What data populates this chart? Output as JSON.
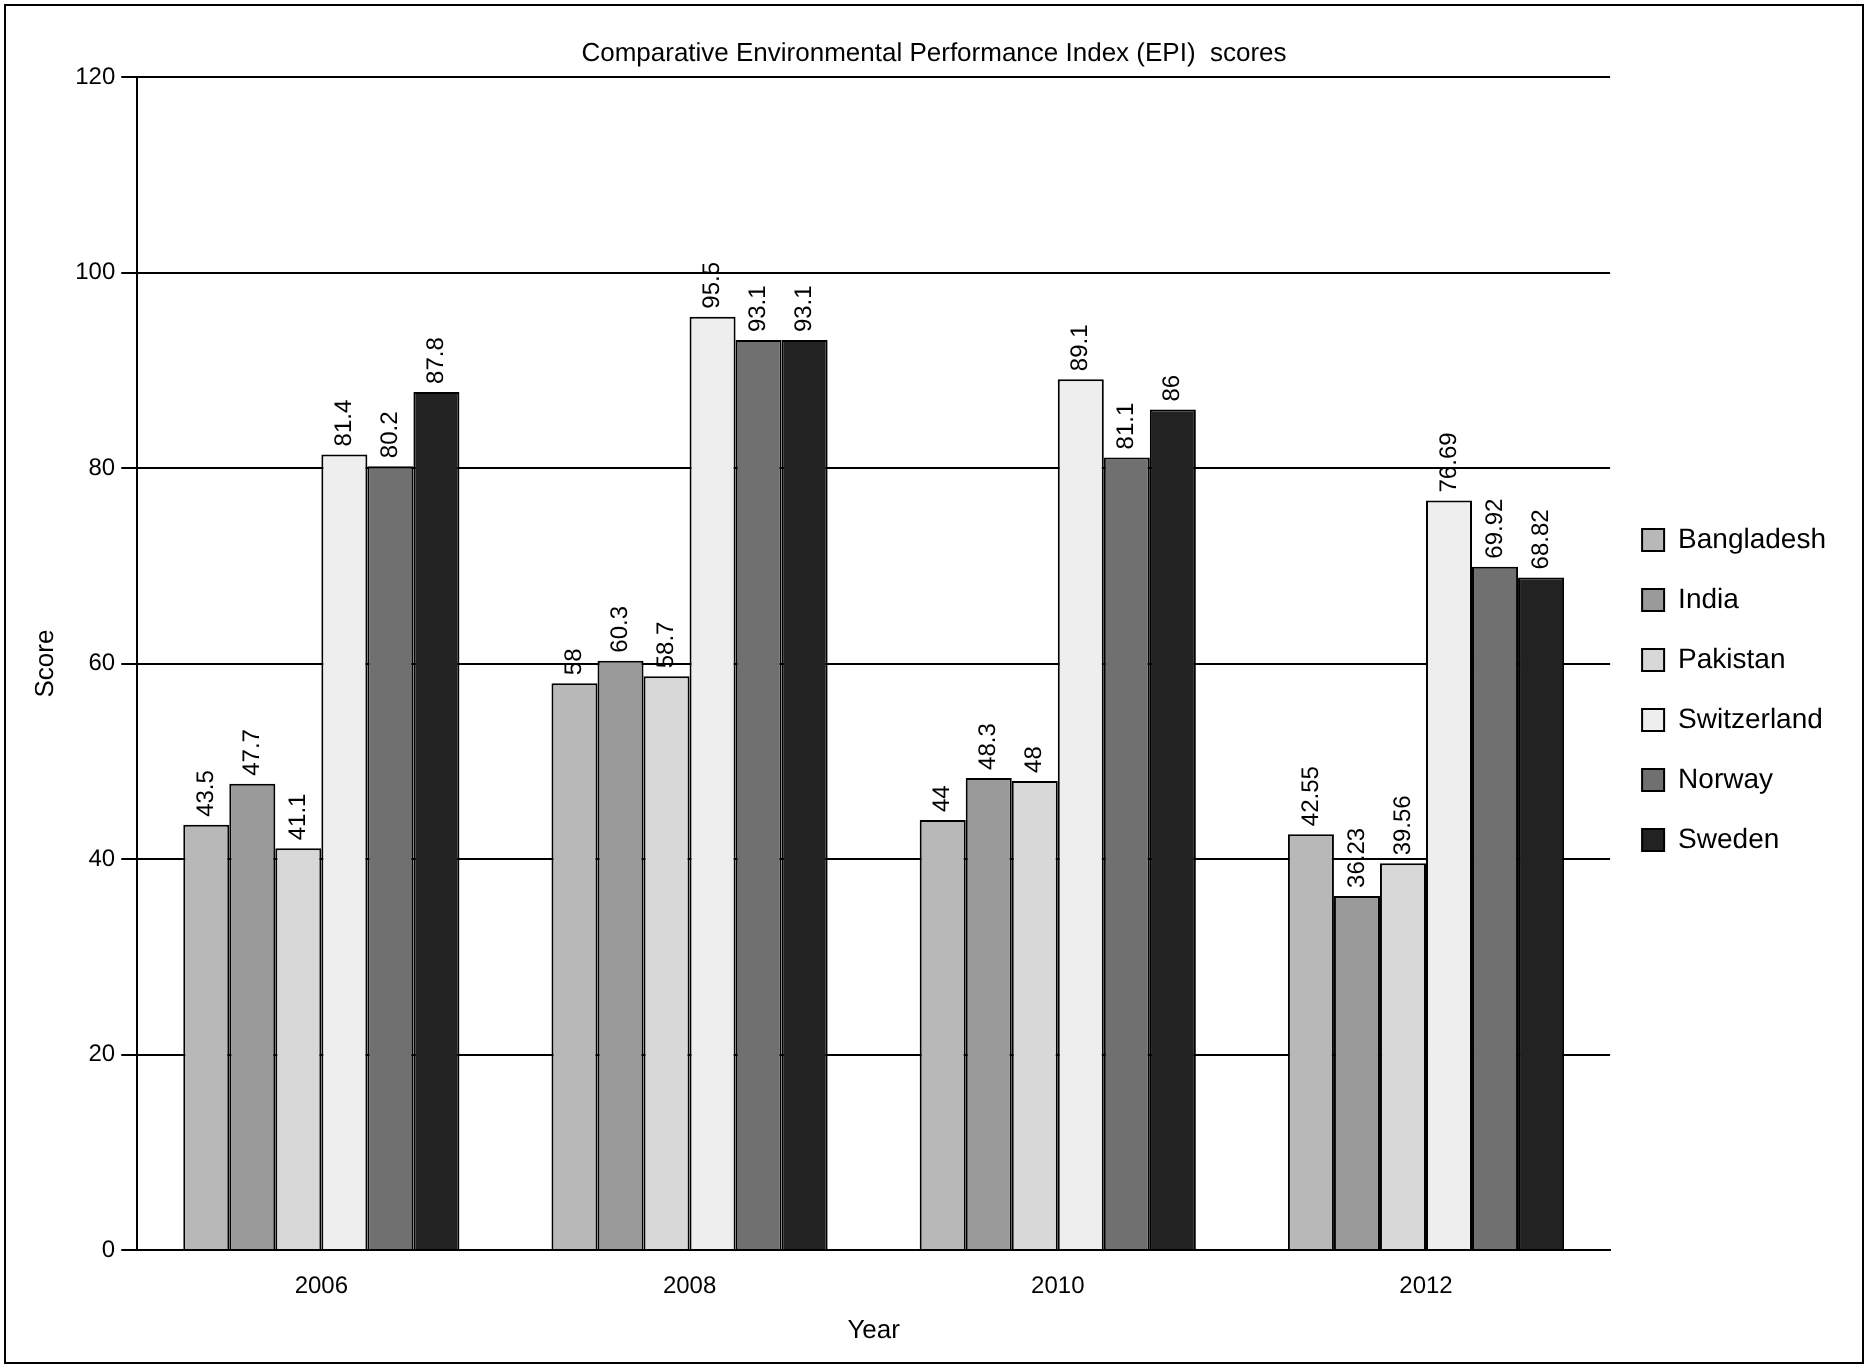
{
  "chart_data": {
    "type": "bar",
    "title": "Comparative Environmental Performance Index (EPI)  scores",
    "xlabel": "Year",
    "ylabel": "Score",
    "categories": [
      "2006",
      "2008",
      "2010",
      "2012"
    ],
    "series": [
      {
        "name": "Bangladesh",
        "color": "#b8b8b8",
        "values": [
          43.5,
          58,
          44,
          42.55
        ]
      },
      {
        "name": "India",
        "color": "#9a9a9a",
        "values": [
          47.7,
          60.3,
          48.3,
          36.23
        ]
      },
      {
        "name": "Pakistan",
        "color": "#d8d8d8",
        "values": [
          41.1,
          58.7,
          48,
          39.56
        ]
      },
      {
        "name": "Switzerland",
        "color": "#eeeeee",
        "values": [
          81.4,
          95.5,
          89.1,
          76.69
        ]
      },
      {
        "name": "Norway",
        "color": "#707070",
        "values": [
          80.2,
          93.1,
          81.1,
          69.92
        ]
      },
      {
        "name": "Sweden",
        "color": "#222222",
        "values": [
          87.8,
          93.1,
          86,
          68.82
        ]
      }
    ],
    "ylim": [
      0,
      120
    ],
    "yticks": [
      0,
      20,
      40,
      60,
      80,
      100,
      120
    ],
    "grid": "y",
    "legend": "right",
    "data_labels": true
  }
}
